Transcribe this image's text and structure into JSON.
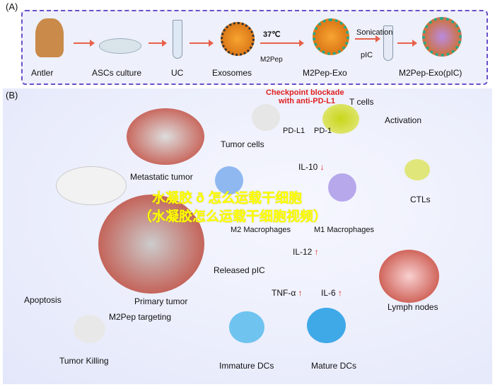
{
  "panel_a": {
    "label": "(A)",
    "steps": [
      "Antler",
      "ASCs culture",
      "UC",
      "Exosomes",
      "M2Pep-Exo",
      "M2Pep-Exo(pIC)"
    ],
    "temp": "37℃",
    "m2pep": "M2Pep",
    "sonication": "Sonication",
    "pic": "pIC"
  },
  "panel_b": {
    "label": "(B)",
    "checkpoint": "Checkpoint blockade",
    "checkpoint2": "with anti-PD-L1",
    "t_cells": "T cells",
    "pd_l1": "PD-L1",
    "pd_1": "PD-1",
    "tumor_cells": "Tumor cells",
    "activation": "Activation",
    "metastatic": "Metastatic tumor",
    "il10": "IL-10",
    "ctls": "CTLs",
    "m2": "M2 Macrophages",
    "m1": "M1 Macrophages",
    "released": "Released pIC",
    "il12": "IL-12",
    "tnf": "TNF-α",
    "il6": "IL-6",
    "primary": "Primary tumor",
    "apoptosis": "Apoptosis",
    "targeting": "M2Pep targeting",
    "killing": "Tumor Killing",
    "immature": "Immature DCs",
    "mature": "Mature DCs",
    "lymph": "Lymph nodes",
    "down": "↓",
    "up": "↑"
  },
  "watermark": {
    "line1": "水凝胶 ð 怎么运载干细胞",
    "line2": "（水凝胶怎么运载干细胞视频）"
  },
  "colors": {
    "border": "#6a4fc9",
    "arrow": "#e8604a",
    "red": "#e02020"
  }
}
